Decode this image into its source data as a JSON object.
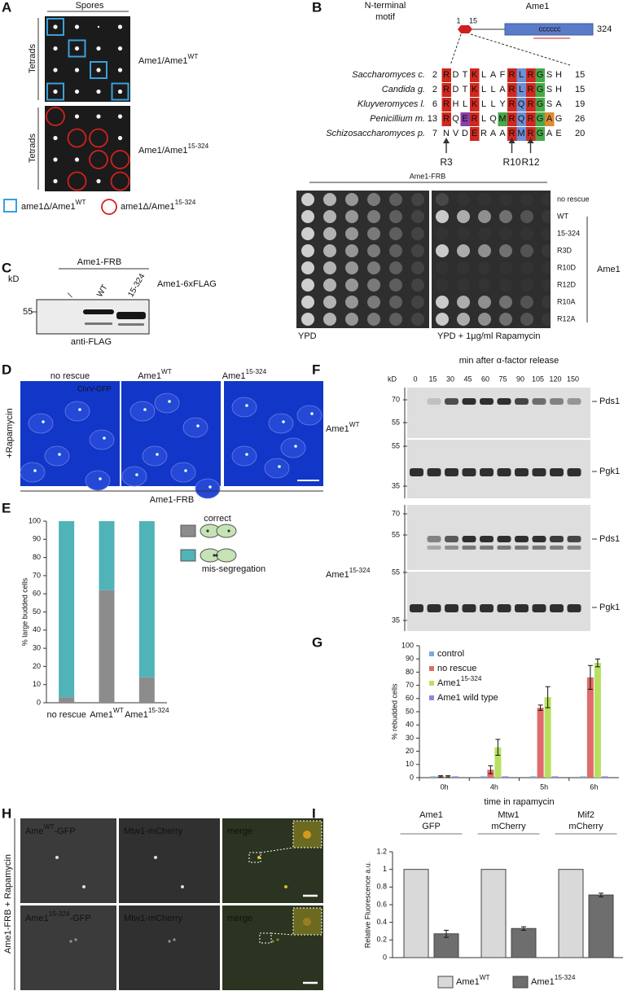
{
  "panel_letters": [
    "A",
    "B",
    "C",
    "D",
    "E",
    "F",
    "G",
    "H",
    "I"
  ],
  "panel_a": {
    "header": "Spores",
    "row_label": "Tetrads",
    "genotype_1": {
      "text": "Ame1/Ame1",
      "sup": "WT"
    },
    "genotype_2": {
      "text": "Ame1/Ame1",
      "sup": "15-324"
    },
    "legend_1": {
      "text": "ame1Δ/Ame1",
      "sup": "WT"
    },
    "legend_2": {
      "text": "ame1Δ/Ame1",
      "sup": "15-324"
    }
  },
  "panel_b": {
    "motif_label": [
      "N-terminal",
      "motif"
    ],
    "protein": "Ame1",
    "start": "1",
    "motif_end": "15",
    "length": "324",
    "coil": "cccccc",
    "species": [
      {
        "name": "Saccharomyces c.",
        "start": "2",
        "seq": [
          "R",
          "D",
          "T",
          "K",
          "L",
          "A",
          "F",
          "R",
          "L",
          "R",
          "G",
          "S",
          "H"
        ],
        "end": "15"
      },
      {
        "name": "Candida g.",
        "start": "2",
        "seq": [
          "R",
          "D",
          "T",
          "K",
          "L",
          "L",
          "A",
          "R",
          "L",
          "R",
          "G",
          "S",
          "H"
        ],
        "end": "15"
      },
      {
        "name": "Kluyveromyces l.",
        "start": "6",
        "seq": [
          "R",
          "H",
          "L",
          "K",
          "L",
          "L",
          "Y",
          "R",
          "Q",
          "R",
          "G",
          "S",
          "A"
        ],
        "end": "19"
      },
      {
        "name": "Penicillium m.",
        "start": "13",
        "seq": [
          "R",
          "Q",
          "E",
          "R",
          "L",
          "Q",
          "M",
          "R",
          "Q",
          "R",
          "G",
          "A",
          "G"
        ],
        "end": "26"
      },
      {
        "name": "Schizosaccharomyces p.",
        "start": "7",
        "seq": [
          "N",
          "V",
          "D",
          "E",
          "R",
          "A",
          "A",
          "R",
          "M",
          "R",
          "G",
          "A",
          "E"
        ],
        "end": "20"
      }
    ],
    "residues": [
      "R3",
      "R10",
      "R12"
    ],
    "strain": "Ame1-FRB",
    "conditions": [
      "no rescue",
      "WT",
      "15-324",
      "R3D",
      "R10D",
      "R12D",
      "R10A",
      "R12A"
    ],
    "group_label": "Ame1",
    "media": [
      "YPD",
      "YPD + 1µg/ml Rapamycin"
    ]
  },
  "panel_c": {
    "strain": "Ame1-FRB",
    "construct": "Ame1-6xFLAG",
    "lanes": [
      "/",
      "WT",
      "15-324"
    ],
    "kd": "kD",
    "marker": "55",
    "antibody": "anti-FLAG"
  },
  "panel_d": {
    "columns": [
      {
        "text": "no rescue"
      },
      {
        "text": "Ame1",
        "sup": "WT"
      },
      {
        "text": "Ame1",
        "sup": "15-324"
      }
    ],
    "channel": "ChrV-GFP",
    "side_label": "+Rapamycin",
    "strain": "Ame1-FRB"
  },
  "panel_f": {
    "title": "min after α-factor release",
    "kd": "kD",
    "times": [
      "0",
      "15",
      "30",
      "45",
      "60",
      "75",
      "90",
      "105",
      "120",
      "150"
    ],
    "rows": [
      {
        "label": {
          "text": "Ame1",
          "sup": "WT"
        },
        "blots": [
          {
            "name": "Pds1",
            "markers": [
              "70",
              "55"
            ]
          },
          {
            "name": "Pgk1",
            "markers": [
              "55",
              "35"
            ]
          }
        ]
      },
      {
        "label": {
          "text": "Ame1",
          "sup": "15-324"
        },
        "blots": [
          {
            "name": "Pds1",
            "markers": [
              "70",
              "55"
            ]
          },
          {
            "name": "Pgk1",
            "markers": [
              "55",
              "35"
            ]
          }
        ]
      }
    ]
  },
  "panel_h": {
    "side_label": "Ame1-FRB + Rapamycin",
    "rows": [
      {
        "channels": [
          {
            "text": "Ame",
            "sup": "WT",
            "after": "-GFP"
          },
          {
            "text": "Mtw1-mCherry"
          },
          {
            "text": "merge"
          }
        ]
      },
      {
        "channels": [
          {
            "text": "Ame1",
            "sup": "15-324",
            "after": "-GFP"
          },
          {
            "text": "Mtw1-mCherry"
          },
          {
            "text": "merge"
          }
        ]
      }
    ]
  },
  "chart_data": [
    {
      "type": "stacked_bar",
      "categories": [
        "no rescue",
        "Ame1",
        "Ame1"
      ],
      "category_superscripts": [
        null,
        "WT",
        "15-324"
      ],
      "series": [
        {
          "name": "correct",
          "color": "#8c8c8c",
          "values": [
            3,
            62,
            14
          ]
        },
        {
          "name": "mis-segregation",
          "color": "#4fb3b8",
          "values": [
            97,
            38,
            86
          ]
        }
      ],
      "ylabel": "% large budded cells",
      "ylim": [
        0,
        100
      ],
      "yticks": [
        0,
        10,
        20,
        30,
        40,
        50,
        60,
        70,
        80,
        90,
        100
      ]
    },
    {
      "type": "bar",
      "categories": [
        "0h",
        "4h",
        "5h",
        "6h"
      ],
      "series": [
        {
          "name": "control",
          "color": "#7fa9dc",
          "values": [
            1,
            1,
            1,
            1
          ]
        },
        {
          "name": "no rescue",
          "color": "#e06b6b",
          "values": [
            1,
            6,
            53,
            76
          ],
          "errors": [
            0.5,
            3,
            2,
            9
          ]
        },
        {
          "name": "Ame1",
          "name_superscript": "15-324",
          "color": "#b8e060",
          "values": [
            1,
            23,
            61,
            87
          ],
          "errors": [
            0.5,
            6,
            8,
            3
          ]
        },
        {
          "name": "Ame1 wild type",
          "color": "#8f88d8",
          "values": [
            1,
            1,
            1,
            1
          ]
        }
      ],
      "ylabel": "% rebudded cells",
      "xlabel": "time in rapamycin",
      "legend": "upper left",
      "ylim": [
        0,
        100
      ],
      "yticks": [
        0,
        10,
        20,
        30,
        40,
        50,
        60,
        70,
        80,
        90,
        100
      ]
    },
    {
      "type": "bar",
      "categories": [
        "Ame1",
        "Mtw1",
        "Mif2"
      ],
      "category_sublabels": [
        "GFP",
        "mCherry",
        "mCherry"
      ],
      "category_colors": [
        "#3fae3f",
        "#b22222",
        "#9a1c1c"
      ],
      "series": [
        {
          "name": "Ame1",
          "name_superscript": "WT",
          "color": "#d9d9d9",
          "values": [
            1,
            1,
            1
          ]
        },
        {
          "name": "Ame1",
          "name_superscript": "15-324",
          "color": "#6e6e6e",
          "values": [
            0.27,
            0.33,
            0.71
          ],
          "errors": [
            0.04,
            0.02,
            0.02
          ]
        }
      ],
      "ylabel": "Relative Fluorescence a.u.",
      "legend": "bottom",
      "ylim": [
        0,
        1.2
      ],
      "yticks": [
        0,
        0.2,
        0.4,
        0.6,
        0.8,
        1,
        1.2
      ]
    }
  ]
}
